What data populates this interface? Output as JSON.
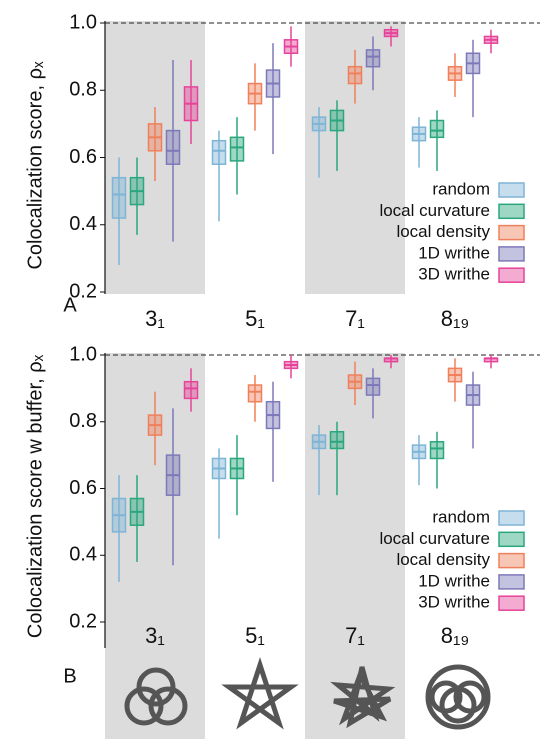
{
  "chart_data": [
    {
      "type": "box",
      "panel_label": "A",
      "y_label": "Colocalization score, ρₓ",
      "categories": [
        "3₁",
        "5₁",
        "7₁",
        "8₁₉"
      ],
      "ylim": [
        0.2,
        1.0
      ],
      "yticks": [
        0.2,
        0.4,
        0.6,
        0.8,
        {
          "value": 1,
          "label": "1.0"
        }
      ],
      "reference_line": 1,
      "legend": "lower right",
      "series": [
        {
          "name": "random",
          "color": "#7eb4d6",
          "values": [
            [
              0.28,
              0.42,
              0.49,
              0.54,
              0.6
            ],
            [
              0.41,
              0.58,
              0.62,
              0.65,
              0.68
            ],
            [
              0.54,
              0.68,
              0.7,
              0.72,
              0.75
            ],
            [
              0.57,
              0.65,
              0.67,
              0.69,
              0.72
            ]
          ]
        },
        {
          "name": "local curvature",
          "color": "#2aa77e",
          "values": [
            [
              0.37,
              0.46,
              0.5,
              0.54,
              0.6
            ],
            [
              0.49,
              0.59,
              0.63,
              0.66,
              0.72
            ],
            [
              0.56,
              0.68,
              0.71,
              0.74,
              0.77
            ],
            [
              0.56,
              0.66,
              0.68,
              0.71,
              0.74
            ]
          ]
        },
        {
          "name": "local density",
          "color": "#f0805c",
          "values": [
            [
              0.53,
              0.62,
              0.66,
              0.7,
              0.75
            ],
            [
              0.68,
              0.76,
              0.79,
              0.82,
              0.88
            ],
            [
              0.76,
              0.82,
              0.85,
              0.87,
              0.92
            ],
            [
              0.78,
              0.83,
              0.85,
              0.87,
              0.91
            ]
          ]
        },
        {
          "name": "1D writhe",
          "color": "#7d79b9",
          "values": [
            [
              0.35,
              0.58,
              0.62,
              0.68,
              0.89
            ],
            [
              0.61,
              0.78,
              0.82,
              0.86,
              0.94
            ],
            [
              0.8,
              0.87,
              0.9,
              0.92,
              0.96
            ],
            [
              0.72,
              0.85,
              0.88,
              0.91,
              0.95
            ]
          ]
        },
        {
          "name": "3D writhe",
          "color": "#e6449a",
          "values": [
            [
              0.64,
              0.71,
              0.76,
              0.81,
              0.89
            ],
            [
              0.87,
              0.91,
              0.93,
              0.95,
              0.99
            ],
            [
              0.93,
              0.96,
              0.97,
              0.98,
              0.99
            ],
            [
              0.91,
              0.94,
              0.95,
              0.96,
              0.98
            ]
          ]
        }
      ]
    },
    {
      "type": "box",
      "panel_label": "B",
      "y_label": "Colocalization score w buffer, ρₓ",
      "categories": [
        "3₁",
        "5₁",
        "7₁",
        "8₁₉"
      ],
      "ylim": [
        0.2,
        1.0
      ],
      "yticks": [
        0.2,
        0.4,
        0.6,
        0.8,
        {
          "value": 1,
          "label": "1.0"
        }
      ],
      "reference_line": 1,
      "legend": "lower right",
      "series": [
        {
          "name": "random",
          "color": "#7eb4d6",
          "values": [
            [
              0.32,
              0.47,
              0.52,
              0.57,
              0.64
            ],
            [
              0.45,
              0.63,
              0.66,
              0.69,
              0.72
            ],
            [
              0.58,
              0.72,
              0.74,
              0.76,
              0.79
            ],
            [
              0.61,
              0.69,
              0.71,
              0.73,
              0.76
            ]
          ]
        },
        {
          "name": "local curvature",
          "color": "#2aa77e",
          "values": [
            [
              0.38,
              0.49,
              0.53,
              0.57,
              0.64
            ],
            [
              0.52,
              0.63,
              0.66,
              0.69,
              0.76
            ],
            [
              0.58,
              0.72,
              0.74,
              0.77,
              0.8
            ],
            [
              0.6,
              0.69,
              0.72,
              0.74,
              0.77
            ]
          ]
        },
        {
          "name": "local density",
          "color": "#f0805c",
          "values": [
            [
              0.67,
              0.76,
              0.79,
              0.82,
              0.89
            ],
            [
              0.8,
              0.86,
              0.89,
              0.91,
              0.94
            ],
            [
              0.85,
              0.9,
              0.92,
              0.94,
              0.98
            ],
            [
              0.86,
              0.92,
              0.94,
              0.96,
              0.99
            ]
          ]
        },
        {
          "name": "1D writhe",
          "color": "#7d79b9",
          "values": [
            [
              0.37,
              0.58,
              0.64,
              0.7,
              0.84
            ],
            [
              0.62,
              0.78,
              0.82,
              0.86,
              0.92
            ],
            [
              0.81,
              0.88,
              0.91,
              0.93,
              0.96
            ],
            [
              0.72,
              0.85,
              0.88,
              0.91,
              0.95
            ]
          ]
        },
        {
          "name": "3D writhe",
          "color": "#e6449a",
          "values": [
            [
              0.83,
              0.87,
              0.9,
              0.92,
              0.96
            ],
            [
              0.93,
              0.96,
              0.97,
              0.98,
              1.0
            ],
            [
              0.96,
              0.98,
              0.99,
              0.99,
              1.0
            ],
            [
              0.96,
              0.98,
              0.99,
              0.99,
              1.0
            ]
          ]
        }
      ]
    }
  ]
}
